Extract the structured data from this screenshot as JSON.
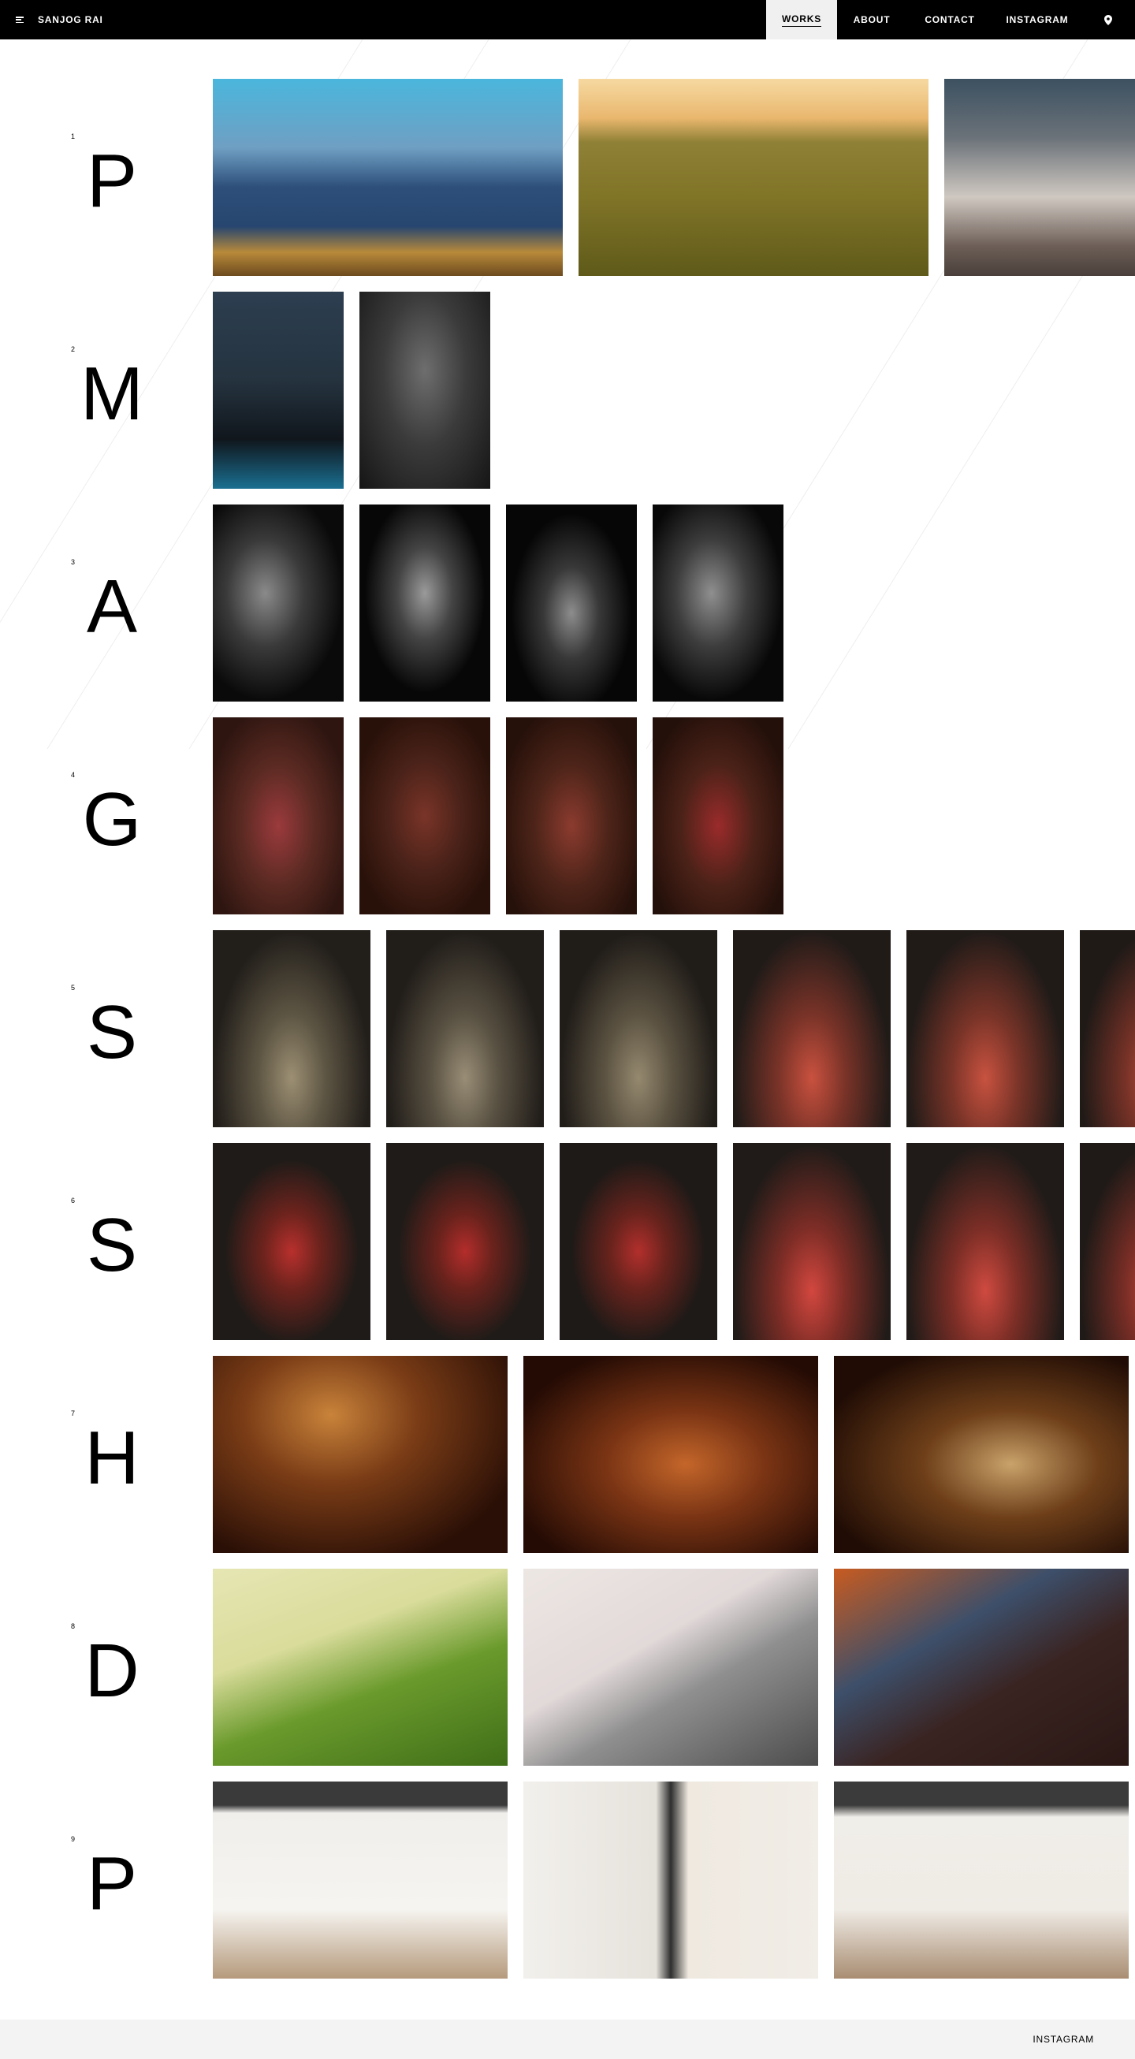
{
  "header": {
    "brand": "SANJOG RAI",
    "nav": [
      {
        "label": "WORKS",
        "active": true
      },
      {
        "label": "ABOUT"
      },
      {
        "label": "CONTACT"
      },
      {
        "label": "INSTAGRAM"
      }
    ],
    "icons": {
      "menu": "menu-icon",
      "location": "map-pin-icon"
    }
  },
  "rows": [
    {
      "num": "1",
      "letter": "P"
    },
    {
      "num": "2",
      "letter": "M"
    },
    {
      "num": "3",
      "letter": "A"
    },
    {
      "num": "4",
      "letter": "G"
    },
    {
      "num": "5",
      "letter": "S"
    },
    {
      "num": "6",
      "letter": "S"
    },
    {
      "num": "7",
      "letter": "H"
    },
    {
      "num": "8",
      "letter": "D"
    },
    {
      "num": "9",
      "letter": "P"
    }
  ],
  "footer": {
    "instagram": "INSTAGRAM"
  }
}
